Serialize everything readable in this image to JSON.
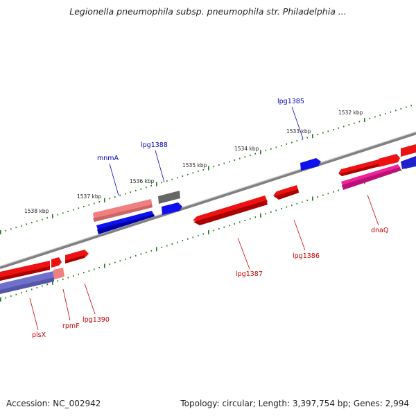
{
  "title": "Legionella pneumophila subsp. pneumophila str. Philadelphia ...",
  "footer": {
    "accession": "Accession: NC_002942",
    "summary": "Topology: circular; Length: 3,397,754 bp; Genes: 2,994"
  },
  "colors": {
    "backbone": "#808080",
    "tick": "#1a7a1a",
    "gene_red": "#ee1111",
    "gene_pink": "#f08080",
    "gene_blue": "#1010ee",
    "gene_lightblue": "#7070cc",
    "gene_gray": "#666666",
    "gene_magenta": "#ee2299",
    "label_red": "#cc0000",
    "label_blue": "#0000bb"
  },
  "kbp_labels": [
    "1538 kbp",
    "1537 kbp",
    "1536 kbp",
    "1535 kbp",
    "1534 kbp",
    "1533 kbp",
    "1532 kbp"
  ],
  "gene_labels": [
    "mnmA",
    "lpg1388",
    "lpg1385",
    "plsX",
    "rpmF",
    "lpg1390",
    "lpg1387",
    "lpg1386",
    "dnaQ"
  ]
}
